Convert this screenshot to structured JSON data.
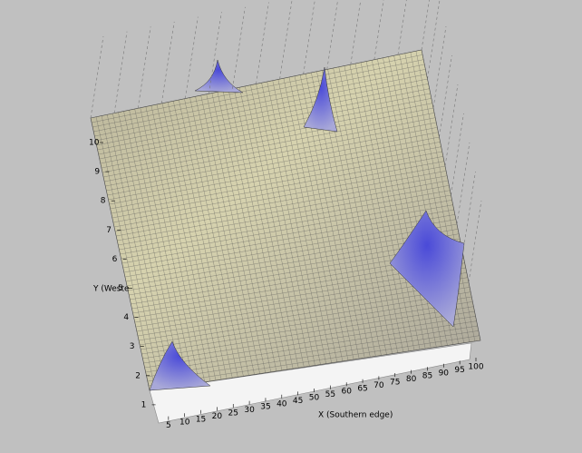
{
  "chart_data": {
    "type": "surface",
    "x_label": "X (Southern edge)",
    "y_label": "Y (Weste",
    "xlim": [
      0,
      100
    ],
    "xticks": [
      5,
      10,
      15,
      20,
      25,
      30,
      35,
      40,
      45,
      50,
      55,
      60,
      65,
      70,
      75,
      80,
      85,
      90,
      95,
      100
    ],
    "ylim": [
      0,
      10
    ],
    "yticks": [
      1,
      2,
      3,
      4,
      5,
      6,
      7,
      8,
      9,
      10
    ]
  }
}
